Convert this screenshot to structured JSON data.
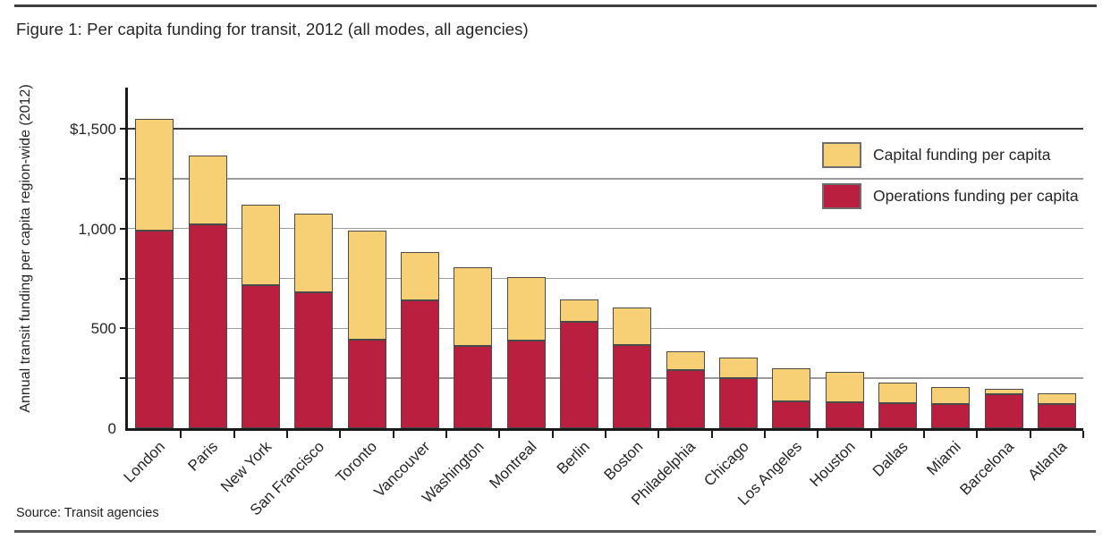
{
  "source": "Source: Transit agencies",
  "colors": {
    "operations": "#BB1F40",
    "capital": "#F7CF74",
    "grid": "#9C9C9C",
    "grid_top": "#3C3C3C",
    "axis": "#1A1A1A",
    "bar_border": "#4A4A4A"
  },
  "legend": [
    {
      "label": "Capital funding per capita",
      "color_key": "capital"
    },
    {
      "label": "Operations funding per capita",
      "color_key": "operations"
    }
  ],
  "chart_data": {
    "type": "bar",
    "stacked": true,
    "title": "Figure 1: Per capita funding for transit, 2012 (all modes, all agencies)",
    "ylabel": "Annual transit funding per capita region-wide (2012)",
    "xlabel": "",
    "ylim": [
      0,
      1700
    ],
    "grid": true,
    "minor_tick_step": 250,
    "legend_position": "upper right",
    "yticks": [
      {
        "value": 0,
        "label": "0"
      },
      {
        "value": 500,
        "label": "500"
      },
      {
        "value": 1000,
        "label": "1,000"
      },
      {
        "value": 1500,
        "label": "$1,500"
      }
    ],
    "categories": [
      "London",
      "Paris",
      "New York",
      "San Francisco",
      "Toronto",
      "Vancouver",
      "Washington",
      "Montreal",
      "Berlin",
      "Boston",
      "Philadelphia",
      "Chicago",
      "Los Angeles",
      "Houston",
      "Dallas",
      "Miami",
      "Barcelona",
      "Atlanta"
    ],
    "series": [
      {
        "name": "Operations funding per capita",
        "color_key": "operations",
        "values": [
          990,
          1020,
          715,
          680,
          445,
          640,
          410,
          440,
          535,
          415,
          290,
          250,
          135,
          130,
          127,
          123,
          172,
          122
        ]
      },
      {
        "name": "Capital funding per capita",
        "color_key": "capital",
        "values": [
          560,
          345,
          405,
          395,
          545,
          240,
          395,
          315,
          110,
          190,
          95,
          105,
          165,
          150,
          103,
          85,
          23,
          53
        ]
      }
    ],
    "totals": [
      1550,
      1365,
      1120,
      1075,
      990,
      880,
      805,
      755,
      645,
      605,
      385,
      355,
      300,
      280,
      230,
      208,
      195,
      175
    ]
  }
}
